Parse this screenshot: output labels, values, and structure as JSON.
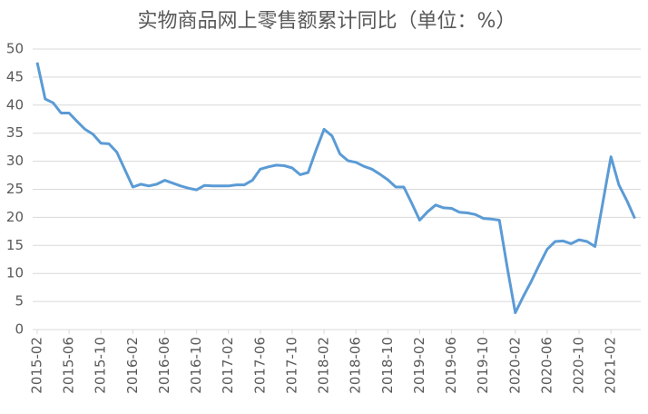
{
  "chart_data": {
    "type": "line",
    "title": "实物商品网上零售额累计同比（单位：%）",
    "categories": [
      "2015-02",
      null,
      null,
      null,
      "2015-06",
      null,
      null,
      null,
      "2015-10",
      null,
      null,
      null,
      "2016-02",
      null,
      null,
      null,
      "2016-06",
      null,
      null,
      null,
      "2016-10",
      null,
      null,
      null,
      "2017-02",
      null,
      null,
      null,
      "2017-06",
      null,
      null,
      null,
      "2017-10",
      null,
      null,
      null,
      "2018-02",
      null,
      null,
      null,
      "2018-06",
      null,
      null,
      null,
      "2018-10",
      null,
      null,
      null,
      "2019-02",
      null,
      null,
      null,
      "2019-06",
      null,
      null,
      null,
      "2019-10",
      null,
      null,
      null,
      "2020-02",
      null,
      null,
      null,
      "2020-06",
      null,
      null,
      null,
      "2020-10",
      null,
      null,
      null,
      "2021-02",
      null,
      null,
      null
    ],
    "series": [
      {
        "name": "实物商品网上零售额累计同比",
        "color": "#5b9bd5",
        "values": [
          47.6,
          41.1,
          40.4,
          38.6,
          38.6,
          37.1,
          35.7,
          34.8,
          33.2,
          33.1,
          31.6,
          28.5,
          25.4,
          25.9,
          25.6,
          25.9,
          26.6,
          26.1,
          25.6,
          25.2,
          24.9,
          25.7,
          25.6,
          25.6,
          25.6,
          25.8,
          25.8,
          26.6,
          28.6,
          29.0,
          29.3,
          29.2,
          28.8,
          27.6,
          28.0,
          32.0,
          35.7,
          34.5,
          31.3,
          30.1,
          29.8,
          29.1,
          28.6,
          27.7,
          26.7,
          25.4,
          25.4,
          22.5,
          19.5,
          21.0,
          22.2,
          21.7,
          21.6,
          20.9,
          20.8,
          20.5,
          19.8,
          19.7,
          19.5,
          11.0,
          3.0,
          5.9,
          8.6,
          11.5,
          14.3,
          15.7,
          15.8,
          15.3,
          16.0,
          15.7,
          14.8,
          22.8,
          30.8,
          25.8,
          23.0,
          19.8
        ]
      }
    ],
    "ylim": [
      0,
      50
    ],
    "yticks": [
      0,
      5,
      10,
      15,
      20,
      25,
      30,
      35,
      40,
      45,
      50
    ],
    "grid": true
  }
}
